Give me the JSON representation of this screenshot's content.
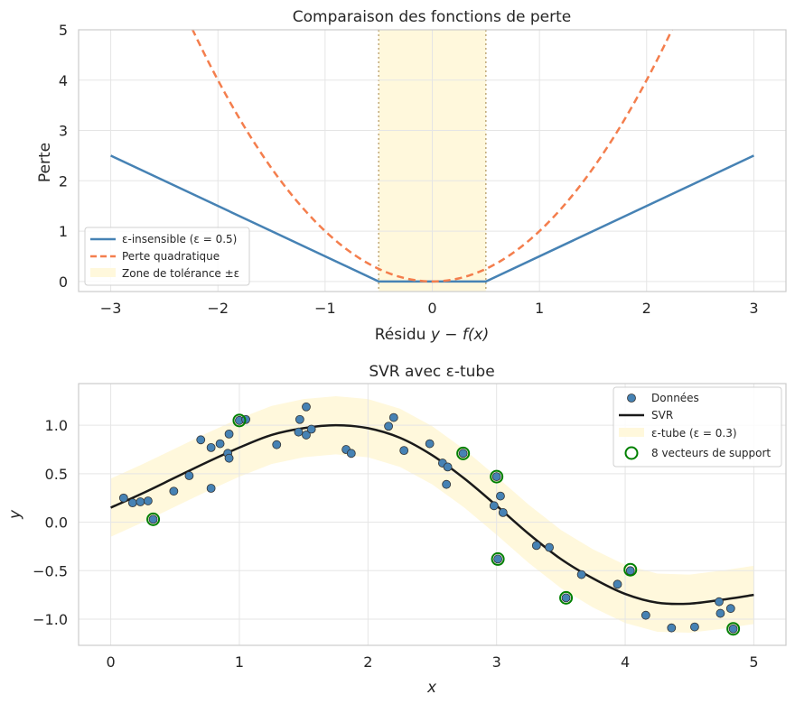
{
  "colors": {
    "insensitive": "#4682b4",
    "quadratic": "#f47e4d",
    "zone": "#fff8dc",
    "zone_edge": "#c0a878",
    "svr": "#1a1a1a",
    "points": "#4682b4",
    "support": "#008000",
    "grid": "#e5e5e5",
    "spine": "#cccccc"
  },
  "chart_data": [
    {
      "type": "line",
      "title": "Comparaison des fonctions de perte",
      "xlabel_prefix": "Résidu ",
      "xlabel_math": "y − f(x)",
      "ylabel": "Perte",
      "xlim": [
        -3.3,
        3.3
      ],
      "ylim": [
        -0.2,
        5
      ],
      "xticks": [
        -3,
        -2,
        -1,
        0,
        1,
        2,
        3
      ],
      "xtick_labels": [
        "−3",
        "−2",
        "−1",
        "0",
        "1",
        "2",
        "3"
      ],
      "yticks": [
        0,
        1,
        2,
        3,
        4,
        5
      ],
      "ytick_labels": [
        "0",
        "1",
        "2",
        "3",
        "4",
        "5"
      ],
      "epsilon": 0.5,
      "series": [
        {
          "name": "ε-insensible (ε = 0.5)",
          "formula": "max(0, |r| − ε)",
          "x_range": [
            -3,
            3
          ],
          "style": "solid"
        },
        {
          "name": "Perte quadratique",
          "formula": "r^2",
          "x_range": [
            -3,
            3
          ],
          "style": "dashed"
        }
      ],
      "zone": {
        "name": "Zone de tolérance ±ε",
        "x_range": [
          -0.5,
          0.5
        ]
      },
      "legend_location": "lower-left"
    },
    {
      "type": "scatter",
      "title": "SVR avec ε-tube",
      "xlabel": "x",
      "ylabel": "y",
      "xlim": [
        -0.25,
        5.25
      ],
      "ylim": [
        -1.27,
        1.43
      ],
      "xticks": [
        0,
        1,
        2,
        3,
        4,
        5
      ],
      "xtick_labels": [
        "0",
        "1",
        "2",
        "3",
        "4",
        "5"
      ],
      "yticks": [
        -1.0,
        -0.5,
        0.0,
        0.5,
        1.0
      ],
      "ytick_labels": [
        "−1.0",
        "−0.5",
        "0.0",
        "0.5",
        "1.0"
      ],
      "epsilon": 0.3,
      "legend": {
        "points": "Données",
        "svr": "SVR",
        "tube": "ε-tube (ε = 0.3)",
        "support": "8 vecteurs de support"
      },
      "legend_location": "upper-right",
      "svr_curve": {
        "x": [
          0,
          0.25,
          0.5,
          0.75,
          1.0,
          1.25,
          1.5,
          1.75,
          2.0,
          2.25,
          2.5,
          2.75,
          3.0,
          3.25,
          3.5,
          3.75,
          4.0,
          4.25,
          4.5,
          4.75,
          5.0
        ],
        "y": [
          0.15,
          0.3,
          0.46,
          0.62,
          0.77,
          0.9,
          0.97,
          1.0,
          0.97,
          0.87,
          0.69,
          0.45,
          0.17,
          -0.12,
          -0.38,
          -0.58,
          -0.74,
          -0.83,
          -0.84,
          -0.8,
          -0.75
        ]
      },
      "points": {
        "x": [
          0.1,
          0.17,
          0.23,
          0.29,
          0.33,
          0.49,
          0.61,
          0.7,
          0.78,
          0.78,
          0.85,
          0.91,
          0.92,
          0.92,
          1.0,
          1.05,
          1.29,
          1.46,
          1.47,
          1.52,
          1.52,
          1.56,
          1.83,
          1.87,
          2.16,
          2.2,
          2.28,
          2.48,
          2.58,
          2.61,
          2.62,
          2.74,
          2.98,
          3.0,
          3.01,
          3.03,
          3.05,
          3.31,
          3.41,
          3.54,
          3.66,
          3.94,
          4.04,
          4.16,
          4.36,
          4.54,
          4.73,
          4.74,
          4.82,
          4.84
        ],
        "y": [
          0.25,
          0.2,
          0.21,
          0.22,
          0.03,
          0.32,
          0.48,
          0.85,
          0.35,
          0.77,
          0.81,
          0.71,
          0.66,
          0.91,
          1.05,
          1.06,
          0.8,
          0.93,
          1.06,
          0.9,
          1.19,
          0.96,
          0.75,
          0.71,
          0.99,
          1.08,
          0.74,
          0.81,
          0.61,
          0.39,
          0.57,
          0.71,
          0.17,
          0.47,
          -0.38,
          0.27,
          0.1,
          -0.24,
          -0.26,
          -0.78,
          -0.54,
          -0.64,
          -0.5,
          -0.96,
          -1.09,
          -1.08,
          -0.82,
          -0.94,
          -0.89,
          -1.1
        ]
      },
      "support_vectors": {
        "x": [
          0.33,
          1.0,
          2.74,
          3.0,
          3.01,
          3.54,
          4.04,
          4.84
        ],
        "y": [
          0.03,
          1.05,
          0.71,
          0.47,
          -0.38,
          -0.78,
          -0.49,
          -1.1
        ]
      }
    }
  ]
}
